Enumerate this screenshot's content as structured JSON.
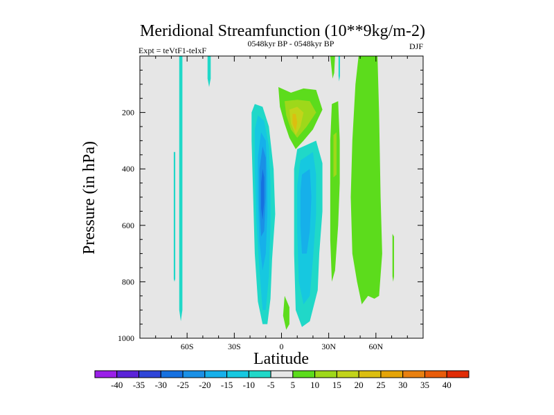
{
  "chart_data": {
    "type": "contour",
    "title": "Meridional Streamfunction (10**9kg/m-2)",
    "subtitle_left": "Expt = teVtF1-teIxF",
    "subtitle_center": "0548kyr BP - 0548kyr BP",
    "subtitle_right": "DJF",
    "xlabel": "Latitude",
    "ylabel": "Pressure (in hPa)",
    "xlim": [
      -90,
      90
    ],
    "ylim": [
      1000,
      0
    ],
    "x_ticks": [
      {
        "value": -60,
        "label": "60S"
      },
      {
        "value": -30,
        "label": "30S"
      },
      {
        "value": 0,
        "label": "0"
      },
      {
        "value": 30,
        "label": "30N"
      },
      {
        "value": 60,
        "label": "60N"
      }
    ],
    "y_ticks": [
      {
        "value": 200,
        "label": "200"
      },
      {
        "value": 400,
        "label": "400"
      },
      {
        "value": 600,
        "label": "600"
      },
      {
        "value": 800,
        "label": "800"
      },
      {
        "value": 1000,
        "label": "1000"
      }
    ],
    "background_color": "#e6e6e6",
    "colorbar": {
      "labels": [
        "-40",
        "-35",
        "-30",
        "-25",
        "-20",
        "-15",
        "-10",
        "-5",
        "5",
        "10",
        "15",
        "20",
        "25",
        "30",
        "35",
        "40"
      ],
      "colors": [
        "#9a1fe8",
        "#5b23d8",
        "#2f45d8",
        "#1670e0",
        "#1a90e6",
        "#16b0ea",
        "#16c8e0",
        "#20d8c8",
        "#e6e6e6",
        "#5cdc1c",
        "#9ed81a",
        "#c2d41a",
        "#dcbe10",
        "#e4a408",
        "#e88010",
        "#e85c0a",
        "#e02c06"
      ]
    },
    "regions": [
      {
        "name": "neg-cell-main-outer",
        "level": -10,
        "color": "#20d8c8",
        "points": [
          [
            -17,
            170
          ],
          [
            -12,
            180
          ],
          [
            -8,
            250
          ],
          [
            -5,
            400
          ],
          [
            -4,
            560
          ],
          [
            -6,
            720
          ],
          [
            -7,
            860
          ],
          [
            -9,
            950
          ],
          [
            -12,
            950
          ],
          [
            -15,
            870
          ],
          [
            -17,
            700
          ],
          [
            -18,
            500
          ],
          [
            -19,
            300
          ],
          [
            -19,
            200
          ]
        ]
      },
      {
        "name": "neg-cell-main-mid",
        "level": -15,
        "color": "#16c8e0",
        "points": [
          [
            -15,
            210
          ],
          [
            -11,
            230
          ],
          [
            -8,
            320
          ],
          [
            -7,
            450
          ],
          [
            -7,
            600
          ],
          [
            -8,
            780
          ],
          [
            -10,
            900
          ],
          [
            -12,
            900
          ],
          [
            -14,
            760
          ],
          [
            -16,
            580
          ],
          [
            -17,
            400
          ],
          [
            -17,
            260
          ]
        ]
      },
      {
        "name": "neg-cell-main-inner",
        "level": -20,
        "color": "#16b0ea",
        "points": [
          [
            -13,
            270
          ],
          [
            -10,
            300
          ],
          [
            -9,
            420
          ],
          [
            -9,
            560
          ],
          [
            -10,
            700
          ],
          [
            -12,
            760
          ],
          [
            -14,
            660
          ],
          [
            -15,
            500
          ],
          [
            -15,
            360
          ]
        ]
      },
      {
        "name": "neg-cell-main-core1",
        "level": -25,
        "color": "#1a90e6",
        "points": [
          [
            -12,
            320
          ],
          [
            -10,
            360
          ],
          [
            -10,
            500
          ],
          [
            -11,
            620
          ],
          [
            -13,
            640
          ],
          [
            -14,
            540
          ],
          [
            -14,
            400
          ]
        ]
      },
      {
        "name": "neg-cell-main-core2",
        "level": -30,
        "color": "#1670e0",
        "points": [
          [
            -12,
            400
          ],
          [
            -11,
            430
          ],
          [
            -11,
            520
          ],
          [
            -12,
            580
          ],
          [
            -13,
            540
          ],
          [
            -13,
            450
          ]
        ]
      },
      {
        "name": "neg-cell-ne-outer",
        "level": -10,
        "color": "#20d8c8",
        "points": [
          [
            10,
            330
          ],
          [
            22,
            300
          ],
          [
            26,
            380
          ],
          [
            26,
            550
          ],
          [
            24,
            700
          ],
          [
            23,
            830
          ],
          [
            18,
            940
          ],
          [
            13,
            960
          ],
          [
            9,
            900
          ],
          [
            8,
            700
          ],
          [
            8,
            500
          ],
          [
            8,
            400
          ]
        ]
      },
      {
        "name": "neg-cell-ne-mid",
        "level": -15,
        "color": "#16c8e0",
        "points": [
          [
            12,
            370
          ],
          [
            20,
            340
          ],
          [
            22,
            420
          ],
          [
            22,
            560
          ],
          [
            20,
            720
          ],
          [
            18,
            850
          ],
          [
            14,
            880
          ],
          [
            11,
            800
          ],
          [
            10,
            620
          ],
          [
            10,
            460
          ]
        ]
      },
      {
        "name": "neg-cell-ne-inner",
        "level": -20,
        "color": "#16b0ea",
        "points": [
          [
            13,
            420
          ],
          [
            18,
            400
          ],
          [
            19,
            500
          ],
          [
            18,
            620
          ],
          [
            16,
            700
          ],
          [
            13,
            700
          ],
          [
            12,
            600
          ],
          [
            12,
            480
          ]
        ]
      },
      {
        "name": "pos-cell-upper-outer",
        "level": 5,
        "color": "#5cdc1c",
        "points": [
          [
            -2,
            110
          ],
          [
            6,
            130
          ],
          [
            14,
            115
          ],
          [
            22,
            120
          ],
          [
            26,
            190
          ],
          [
            20,
            260
          ],
          [
            14,
            300
          ],
          [
            9,
            330
          ],
          [
            5,
            290
          ],
          [
            2,
            240
          ],
          [
            -1,
            180
          ]
        ]
      },
      {
        "name": "pos-cell-upper-mid",
        "level": 10,
        "color": "#9ed81a",
        "points": [
          [
            2,
            160
          ],
          [
            10,
            155
          ],
          [
            18,
            160
          ],
          [
            22,
            200
          ],
          [
            16,
            250
          ],
          [
            10,
            290
          ],
          [
            6,
            260
          ],
          [
            3,
            210
          ]
        ]
      },
      {
        "name": "pos-cell-upper-inner",
        "level": 15,
        "color": "#c2d41a",
        "points": [
          [
            5,
            190
          ],
          [
            10,
            180
          ],
          [
            14,
            200
          ],
          [
            12,
            250
          ],
          [
            9,
            280
          ],
          [
            6,
            240
          ]
        ]
      },
      {
        "name": "pos-cell-upper-core",
        "level": 20,
        "color": "#dcbe10",
        "points": [
          [
            7,
            205
          ],
          [
            9,
            205
          ],
          [
            10,
            235
          ],
          [
            9,
            265
          ],
          [
            7,
            240
          ]
        ]
      },
      {
        "name": "pos-band-30n",
        "level": 5,
        "color": "#5cdc1c",
        "points": [
          [
            32,
            170
          ],
          [
            36,
            160
          ],
          [
            37,
            300
          ],
          [
            37,
            450
          ],
          [
            36,
            600
          ],
          [
            34,
            760
          ],
          [
            32,
            800
          ],
          [
            31,
            650
          ],
          [
            31,
            450
          ],
          [
            31,
            300
          ]
        ]
      },
      {
        "name": "pos-band-30n-inner",
        "level": 10,
        "color": "#9ed81a",
        "points": [
          [
            33,
            280
          ],
          [
            35,
            270
          ],
          [
            35,
            420
          ],
          [
            33,
            430
          ],
          [
            33,
            350
          ]
        ]
      },
      {
        "name": "pos-band-30n-top",
        "level": 5,
        "color": "#5cdc1c",
        "points": [
          [
            31,
            0
          ],
          [
            34,
            0
          ],
          [
            33.5,
            60
          ],
          [
            32.5,
            80
          ]
        ]
      },
      {
        "name": "pos-band-60n",
        "level": 5,
        "color": "#5cdc1c",
        "points": [
          [
            49,
            0
          ],
          [
            61,
            0
          ],
          [
            62,
            200
          ],
          [
            63,
            500
          ],
          [
            64,
            700
          ],
          [
            62,
            850
          ],
          [
            59,
            860
          ],
          [
            55,
            850
          ],
          [
            51,
            880
          ],
          [
            48,
            800
          ],
          [
            45,
            700
          ],
          [
            44,
            500
          ],
          [
            45,
            300
          ],
          [
            47,
            100
          ]
        ]
      },
      {
        "name": "pos-strip-78n",
        "level": 5,
        "color": "#5cdc1c",
        "points": [
          [
            70.5,
            630
          ],
          [
            71.5,
            640
          ],
          [
            71.5,
            780
          ],
          [
            71,
            800
          ],
          [
            70.5,
            780
          ]
        ]
      },
      {
        "name": "pos-blob-low-eq",
        "level": 5,
        "color": "#5cdc1c",
        "points": [
          [
            2,
            850
          ],
          [
            5,
            890
          ],
          [
            5,
            950
          ],
          [
            3,
            970
          ],
          [
            1,
            920
          ]
        ]
      },
      {
        "name": "neg-strip-65s",
        "level": -5,
        "color": "#20d8c8",
        "points": [
          [
            -65,
            0
          ],
          [
            -63,
            0
          ],
          [
            -63,
            300
          ],
          [
            -63,
            600
          ],
          [
            -63,
            900
          ],
          [
            -64,
            940
          ],
          [
            -65,
            900
          ],
          [
            -65,
            600
          ],
          [
            -65,
            300
          ]
        ]
      },
      {
        "name": "neg-strip-68s",
        "level": -5,
        "color": "#20d8c8",
        "points": [
          [
            -68.5,
            340
          ],
          [
            -67.5,
            340
          ],
          [
            -67.5,
            790
          ],
          [
            -68,
            800
          ],
          [
            -68.5,
            790
          ]
        ]
      },
      {
        "name": "neg-strip-46s",
        "level": -5,
        "color": "#20d8c8",
        "points": [
          [
            -47,
            0
          ],
          [
            -45,
            0
          ],
          [
            -45,
            80
          ],
          [
            -46,
            110
          ],
          [
            -47,
            80
          ]
        ]
      },
      {
        "name": "neg-strip-36n",
        "level": -5,
        "color": "#20d8c8",
        "points": [
          [
            36.2,
            0
          ],
          [
            37.2,
            0
          ],
          [
            37.2,
            70
          ],
          [
            36.6,
            90
          ],
          [
            36.2,
            70
          ]
        ]
      }
    ]
  }
}
